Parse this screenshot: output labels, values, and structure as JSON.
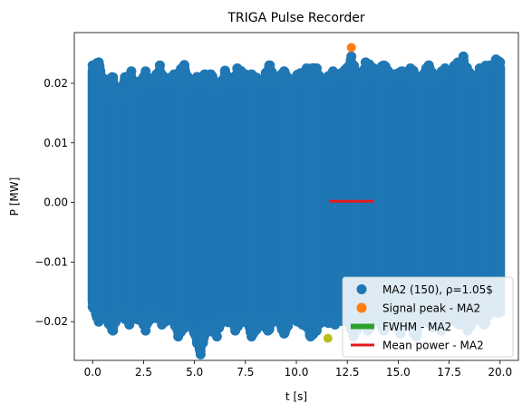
{
  "chart_data": {
    "type": "scatter",
    "title": "TRIGA Pulse Recorder",
    "xlabel": "t [s]",
    "ylabel": "P [MW]",
    "xlim": [
      -0.9,
      20.9
    ],
    "ylim": [
      -0.0265,
      0.0285
    ],
    "xticks": [
      0.0,
      2.5,
      5.0,
      7.5,
      10.0,
      12.5,
      15.0,
      17.5,
      20.0
    ],
    "xtick_labels": [
      "0.0",
      "2.5",
      "5.0",
      "7.5",
      "10.0",
      "12.5",
      "15.0",
      "17.5",
      "20.0"
    ],
    "yticks": [
      -0.02,
      -0.01,
      0.0,
      0.01,
      0.02
    ],
    "ytick_labels": [
      "−0.02",
      "−0.01",
      "0.00",
      "0.01",
      "0.02"
    ],
    "grid": false,
    "legend_position": "lower-right",
    "series": [
      {
        "name": "MA2 (150), ρ=1.05$",
        "kind": "scatter",
        "color": "#1f77b4",
        "x_range": [
          0.0,
          20.0
        ],
        "upper_envelope": [
          [
            0.0,
            0.023
          ],
          [
            0.3,
            0.0235
          ],
          [
            0.6,
            0.0205
          ],
          [
            1.0,
            0.021
          ],
          [
            1.3,
            0.0185
          ],
          [
            1.6,
            0.021
          ],
          [
            1.9,
            0.022
          ],
          [
            2.2,
            0.0195
          ],
          [
            2.6,
            0.022
          ],
          [
            3.0,
            0.0205
          ],
          [
            3.3,
            0.023
          ],
          [
            3.6,
            0.0205
          ],
          [
            4.0,
            0.0215
          ],
          [
            4.5,
            0.023
          ],
          [
            4.8,
            0.0205
          ],
          [
            5.2,
            0.021
          ],
          [
            5.5,
            0.0215
          ],
          [
            5.8,
            0.0215
          ],
          [
            6.2,
            0.0195
          ],
          [
            6.5,
            0.022
          ],
          [
            6.8,
            0.0205
          ],
          [
            7.1,
            0.0225
          ],
          [
            7.5,
            0.0215
          ],
          [
            7.8,
            0.0215
          ],
          [
            8.2,
            0.0205
          ],
          [
            8.7,
            0.023
          ],
          [
            9.0,
            0.0205
          ],
          [
            9.4,
            0.022
          ],
          [
            9.8,
            0.0205
          ],
          [
            10.1,
            0.0215
          ],
          [
            10.5,
            0.0225
          ],
          [
            11.0,
            0.0225
          ],
          [
            11.4,
            0.0205
          ],
          [
            11.8,
            0.022
          ],
          [
            12.2,
            0.0215
          ],
          [
            12.7,
            0.0245
          ],
          [
            13.0,
            0.021
          ],
          [
            13.4,
            0.0235
          ],
          [
            13.8,
            0.0225
          ],
          [
            14.3,
            0.023
          ],
          [
            14.8,
            0.0215
          ],
          [
            15.2,
            0.022
          ],
          [
            15.6,
            0.0225
          ],
          [
            16.0,
            0.021
          ],
          [
            16.5,
            0.023
          ],
          [
            16.9,
            0.021
          ],
          [
            17.3,
            0.0225
          ],
          [
            17.8,
            0.023
          ],
          [
            18.2,
            0.0245
          ],
          [
            18.6,
            0.021
          ],
          [
            19.0,
            0.0225
          ],
          [
            19.5,
            0.023
          ],
          [
            19.8,
            0.024
          ],
          [
            20.0,
            0.0235
          ]
        ],
        "lower_envelope": [
          [
            0.0,
            -0.0175
          ],
          [
            0.3,
            -0.02
          ],
          [
            0.6,
            -0.0195
          ],
          [
            1.0,
            -0.0215
          ],
          [
            1.4,
            -0.0185
          ],
          [
            1.8,
            -0.0205
          ],
          [
            2.3,
            -0.0195
          ],
          [
            2.6,
            -0.0215
          ],
          [
            3.0,
            -0.019
          ],
          [
            3.4,
            -0.0205
          ],
          [
            3.8,
            -0.0195
          ],
          [
            4.2,
            -0.0225
          ],
          [
            4.6,
            -0.0205
          ],
          [
            5.0,
            -0.022
          ],
          [
            5.3,
            -0.0255
          ],
          [
            5.7,
            -0.021
          ],
          [
            6.1,
            -0.0225
          ],
          [
            6.5,
            -0.0195
          ],
          [
            7.0,
            -0.0215
          ],
          [
            7.4,
            -0.0195
          ],
          [
            7.8,
            -0.0225
          ],
          [
            8.2,
            -0.0205
          ],
          [
            8.6,
            -0.0215
          ],
          [
            9.0,
            -0.0195
          ],
          [
            9.4,
            -0.022
          ],
          [
            9.9,
            -0.0195
          ],
          [
            10.3,
            -0.0205
          ],
          [
            10.7,
            -0.0225
          ],
          [
            11.0,
            -0.0215
          ],
          [
            11.4,
            -0.02
          ],
          [
            11.9,
            -0.0205
          ],
          [
            12.3,
            -0.0195
          ],
          [
            12.8,
            -0.0225
          ],
          [
            13.1,
            -0.0205
          ],
          [
            13.5,
            -0.0215
          ],
          [
            13.9,
            -0.0195
          ],
          [
            14.3,
            -0.0215
          ],
          [
            14.7,
            -0.0195
          ],
          [
            15.1,
            -0.022
          ],
          [
            15.5,
            -0.0205
          ],
          [
            15.9,
            -0.0225
          ],
          [
            16.3,
            -0.0195
          ],
          [
            16.7,
            -0.021
          ],
          [
            17.1,
            -0.0215
          ],
          [
            17.6,
            -0.0195
          ],
          [
            18.0,
            -0.0205
          ],
          [
            18.4,
            -0.0215
          ],
          [
            18.8,
            -0.0195
          ],
          [
            19.2,
            -0.0205
          ],
          [
            19.6,
            -0.0185
          ],
          [
            20.0,
            -0.0185
          ]
        ]
      },
      {
        "name": "Signal peak - MA2",
        "kind": "scatter",
        "color": "#ff7f0e",
        "points": [
          [
            12.7,
            0.026
          ]
        ]
      },
      {
        "name": "FWHM - MA2",
        "kind": "line",
        "color": "#2ca02c",
        "x": [
          11.5,
          13.8
        ],
        "y": [
          -0.0228,
          -0.0228
        ]
      },
      {
        "name": "Mean power - MA2",
        "kind": "line",
        "color": "#e41a1c",
        "x": [
          11.6,
          13.8
        ],
        "y": [
          0.0002,
          0.0002
        ]
      }
    ],
    "extra_point": {
      "color": "#bcbd22",
      "x": 11.55,
      "y": -0.0228
    }
  }
}
